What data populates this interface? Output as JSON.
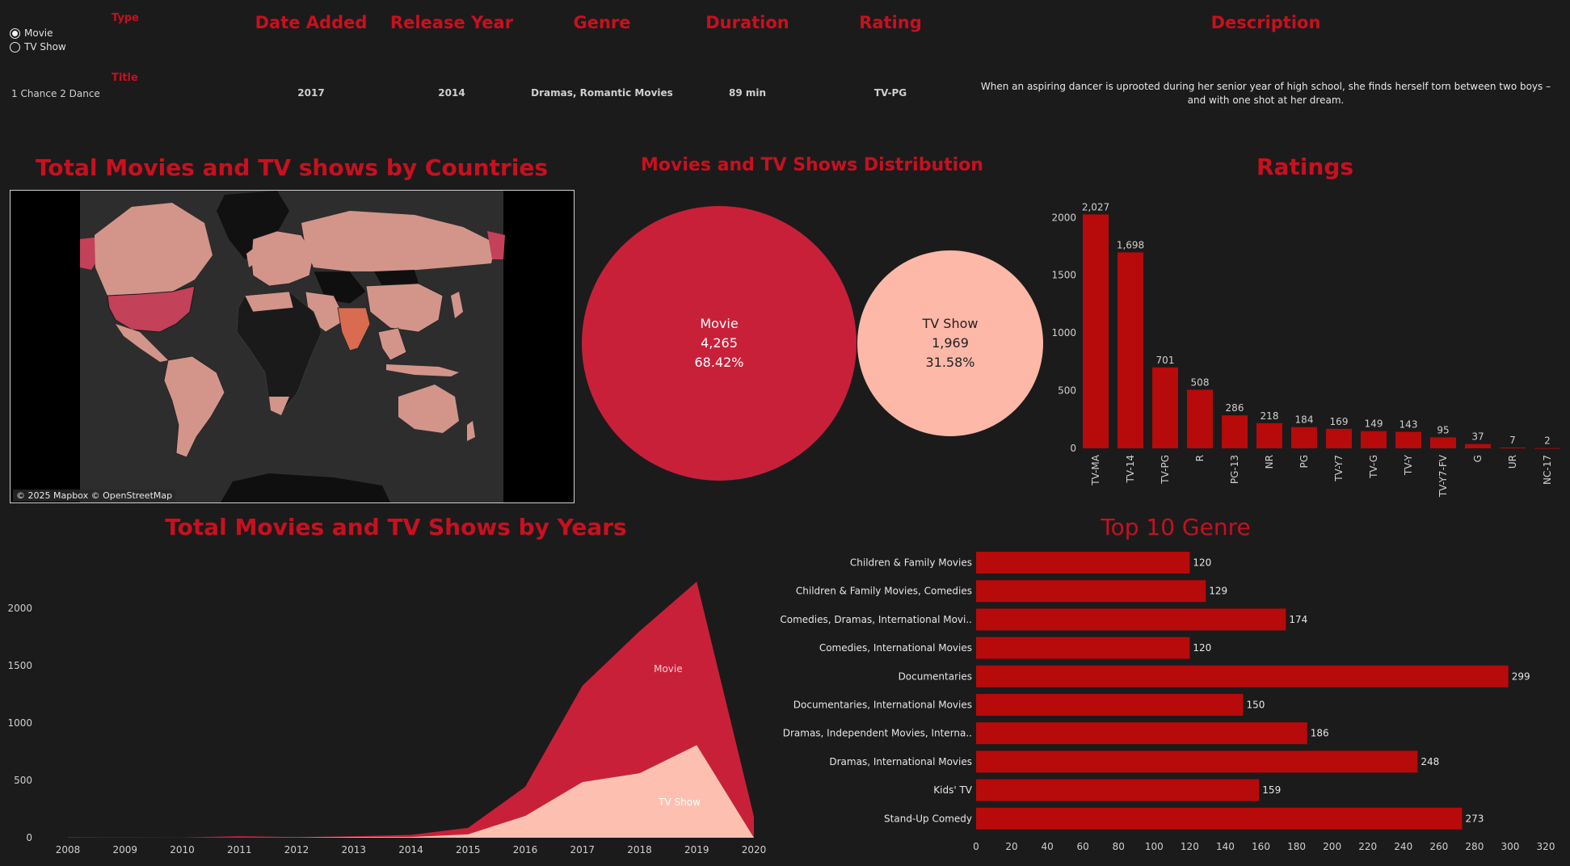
{
  "filter": {
    "type_label": "Type",
    "options": [
      {
        "label": "Movie",
        "selected": true
      },
      {
        "label": "TV Show",
        "selected": false
      }
    ],
    "title_label": "Title"
  },
  "detail": {
    "headers": {
      "date_added": "Date Added",
      "release_year": "Release Year",
      "genre": "Genre",
      "duration": "Duration",
      "rating": "Rating",
      "description": "Description"
    },
    "row": {
      "title": "1 Chance 2 Dance",
      "date_added": "2017",
      "release_year": "2014",
      "genre": "Dramas, Romantic Movies",
      "duration": "89 min",
      "rating": "TV-PG",
      "description": "When an aspiring dancer is uprooted during her senior year of high school, she finds herself torn between two boys – and with one shot at her dream."
    }
  },
  "map": {
    "title": "Total Movies and TV shows by Countries",
    "attribution": "© 2025 Mapbox © OpenStreetMap"
  },
  "distribution": {
    "title": "Movies and TV Shows Distribution",
    "bubbles": [
      {
        "label": "Movie",
        "count": "4,265",
        "pct": "68.42%",
        "color": "#c9203a"
      },
      {
        "label": "TV Show",
        "count": "1,969",
        "pct": "31.58%",
        "color": "#fdb8a8"
      }
    ]
  },
  "colors": {
    "accent": "#c8101e",
    "bar": "#b70a0b",
    "movie": "#c9203a",
    "tvshow": "#fdc0b0",
    "background": "#1b1b1c"
  },
  "chart_data": [
    {
      "type": "bar",
      "title": "Ratings",
      "categories": [
        "TV-MA",
        "TV-14",
        "TV-PG",
        "R",
        "PG-13",
        "NR",
        "PG",
        "TV-Y7",
        "TV-G",
        "TV-Y",
        "TV-Y7-FV",
        "G",
        "UR",
        "NC-17"
      ],
      "values": [
        2027,
        1698,
        701,
        508,
        286,
        218,
        184,
        169,
        149,
        143,
        95,
        37,
        7,
        2
      ],
      "data_labels": [
        "2,027",
        "1,698",
        "701",
        "508",
        "286",
        "218",
        "184",
        "169",
        "149",
        "143",
        "95",
        "37",
        "7",
        "2"
      ],
      "yticks": [
        0,
        500,
        1000,
        1500,
        2000
      ],
      "ylim": [
        0,
        2100
      ]
    },
    {
      "type": "area",
      "title": "Total Movies and TV Shows by Years",
      "x": [
        2008,
        2009,
        2010,
        2011,
        2012,
        2013,
        2014,
        2015,
        2016,
        2017,
        2018,
        2019,
        2020
      ],
      "series": [
        {
          "name": "Movie",
          "values": [
            1,
            2,
            1,
            13,
            3,
            6,
            19,
            56,
            253,
            839,
            1237,
            1424,
            184
          ]
        },
        {
          "name": "TV Show",
          "values": [
            1,
            0,
            0,
            0,
            2,
            6,
            6,
            30,
            190,
            485,
            562,
            807,
            0
          ]
        }
      ],
      "yticks": [
        0,
        500,
        1000,
        1500,
        2000
      ],
      "ylim": [
        0,
        2400
      ]
    },
    {
      "type": "bar",
      "orientation": "horizontal",
      "title": "Top 10 Genre",
      "categories": [
        "Children & Family Movies",
        "Children & Family Movies, Comedies",
        "Comedies, Dramas, International Movi..",
        "Comedies, International Movies",
        "Documentaries",
        "Documentaries, International Movies",
        "Dramas, Independent Movies, Interna..",
        "Dramas, International Movies",
        "Kids' TV",
        "Stand-Up Comedy"
      ],
      "values": [
        120,
        129,
        174,
        120,
        299,
        150,
        186,
        248,
        159,
        273
      ],
      "xticks": [
        0,
        20,
        40,
        60,
        80,
        100,
        120,
        140,
        160,
        180,
        200,
        220,
        240,
        260,
        280,
        300,
        320
      ],
      "xlim": [
        0,
        320
      ]
    }
  ]
}
